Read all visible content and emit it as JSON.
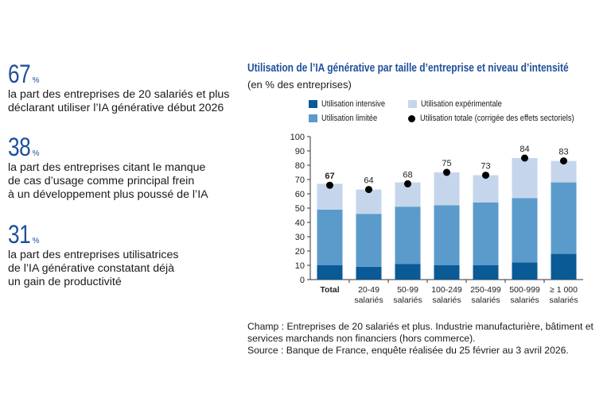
{
  "kpis": [
    {
      "value": "67",
      "unit": "%",
      "text_lines": [
        "la part des entreprises de 20 salariés et plus",
        "déclarant utiliser l’IA générative début 2026"
      ]
    },
    {
      "value": "38",
      "unit": "%",
      "text_lines": [
        "la part des entreprises citant le manque",
        "de cas d’usage comme principal frein",
        "à un développement plus poussé de l’IA"
      ]
    },
    {
      "value": "31",
      "unit": "%",
      "text_lines": [
        "la part des entreprises utilisatrices",
        "de l’IA générative constatant déjà",
        "un gain de productivité"
      ]
    }
  ],
  "chart_title": "Utilisation de l’IA générative par taille d’entreprise et niveau d’intensité",
  "chart_subtitle": "(en % des entreprises)",
  "legend": [
    {
      "label": "Utilisation intensive",
      "color": "#0a5a96",
      "kind": "bar"
    },
    {
      "label": "Utilisation expérimentale",
      "color": "#c5d6ec",
      "kind": "bar"
    },
    {
      "label": "Utilisation limitée",
      "color": "#5a9bcb",
      "kind": "bar"
    },
    {
      "label": "Utilisation totale (corrigée des effets sectoriels)",
      "color": "#000000",
      "kind": "dot"
    }
  ],
  "chart_data": {
    "type": "bar",
    "stacked": true,
    "categories": [
      [
        "Total"
      ],
      [
        "20-49",
        "salariés"
      ],
      [
        "50-99",
        "salariés"
      ],
      [
        "100-249",
        "salariés"
      ],
      [
        "250-499",
        "salariés"
      ],
      [
        "500-999",
        "salariés"
      ],
      [
        "≥ 1 000",
        "salariés"
      ]
    ],
    "series": [
      {
        "name": "Utilisation intensive",
        "color": "#0a5a96",
        "values": [
          10,
          9,
          11,
          10,
          10,
          12,
          18
        ]
      },
      {
        "name": "Utilisation limitée",
        "color": "#5a9bcb",
        "values": [
          39,
          37,
          40,
          42,
          44,
          45,
          50
        ]
      },
      {
        "name": "Utilisation expérimentale",
        "color": "#c5d6ec",
        "values": [
          18,
          17,
          17,
          23,
          19,
          28,
          15
        ]
      }
    ],
    "dots": {
      "name": "Utilisation totale (corrigée des effets sectoriels)",
      "values": [
        66,
        63,
        67,
        75,
        73,
        85,
        83
      ]
    },
    "labels": [
      "67",
      "64",
      "68",
      "75",
      "73",
      "84",
      "83"
    ],
    "ylim": [
      0,
      100
    ],
    "yticks": [
      0,
      10,
      20,
      30,
      40,
      50,
      60,
      70,
      80,
      90,
      100
    ],
    "grid": false,
    "legend_position": "top"
  },
  "notes": [
    "Champ : Entreprises de 20 salariés et plus. Industrie manufacturière, bâtiment et",
    "services marchands non financiers (hors commerce).",
    "Source : Banque de France, enquête réalisée du 25 février au 3 avril 2026."
  ]
}
